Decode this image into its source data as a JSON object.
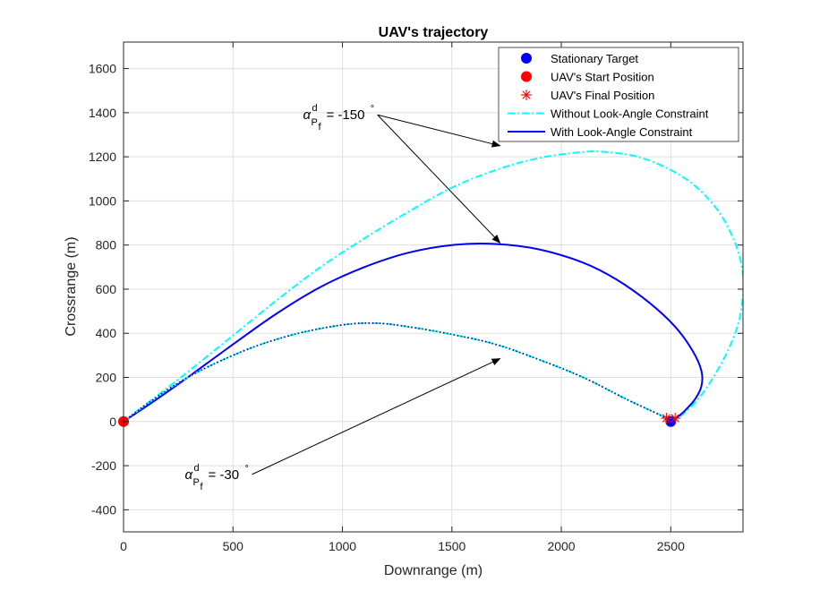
{
  "chart_data": {
    "type": "line",
    "title": "UAV's trajectory",
    "xlabel": "Downrange (m)",
    "ylabel": "Crossrange (m)",
    "xlim": [
      0,
      2830
    ],
    "ylim": [
      -500,
      1720
    ],
    "grid": true,
    "legend_position": "top-right",
    "xticks": [
      0,
      500,
      1000,
      1500,
      2000,
      2500
    ],
    "yticks": [
      -400,
      -200,
      0,
      200,
      400,
      600,
      800,
      1000,
      1200,
      1400,
      1600
    ],
    "legend": [
      {
        "label": "Stationary Target",
        "marker": "circle",
        "color": "#0000ff"
      },
      {
        "label": "UAV's Start Position",
        "marker": "circle",
        "color": "#ff0000"
      },
      {
        "label": "UAV's Final Position",
        "marker": "asterisk",
        "color": "#ff0000"
      },
      {
        "label": "Without Look-Angle Constraint",
        "line": "dashdot",
        "color": "#00ffff"
      },
      {
        "label": "With Look-Angle Constraint",
        "line": "solid",
        "color": "#0000ff"
      }
    ],
    "markers": {
      "target": {
        "x": 2500,
        "y": 0
      },
      "start": {
        "x": 0,
        "y": 0
      },
      "final": [
        {
          "x": 2480,
          "y": 15
        },
        {
          "x": 2520,
          "y": 15
        }
      ]
    },
    "series": [
      {
        "name": "Without Look-Angle Constraint",
        "style": "dashdot",
        "color": "#00ffff",
        "x": [
          0,
          150,
          300,
          500,
          700,
          900,
          1100,
          1300,
          1500,
          1700,
          1900,
          2100,
          2200,
          2350,
          2500,
          2620,
          2720,
          2790,
          2825,
          2830,
          2810,
          2760,
          2700,
          2640,
          2580,
          2530,
          2500
        ],
        "y": [
          0,
          115,
          230,
          390,
          550,
          700,
          830,
          950,
          1060,
          1140,
          1195,
          1222,
          1222,
          1200,
          1140,
          1060,
          950,
          820,
          700,
          580,
          450,
          320,
          210,
          120,
          55,
          15,
          0
        ]
      },
      {
        "name": "With Look-Angle Constraint",
        "style": "solid",
        "color": "#0000ff",
        "x": [
          0,
          150,
          300,
          500,
          700,
          900,
          1100,
          1300,
          1500,
          1700,
          1900,
          2100,
          2250,
          2400,
          2520,
          2600,
          2640,
          2640,
          2610,
          2560,
          2520,
          2500
        ],
        "y": [
          0,
          100,
          205,
          350,
          490,
          610,
          700,
          765,
          800,
          805,
          780,
          720,
          645,
          540,
          430,
          320,
          230,
          160,
          100,
          45,
          12,
          0
        ]
      },
      {
        "name": "",
        "style": "dashdot",
        "color": "#00ffff",
        "x": [
          0,
          100,
          250,
          400,
          600,
          800,
          1000,
          1150,
          1300,
          1500,
          1700,
          1900,
          2100,
          2300,
          2450,
          2500
        ],
        "y": [
          0,
          75,
          175,
          255,
          340,
          400,
          438,
          446,
          430,
          395,
          350,
          280,
          200,
          100,
          30,
          0
        ]
      },
      {
        "name": "",
        "style": "dotted",
        "color": "#000080",
        "x": [
          0,
          100,
          250,
          400,
          600,
          800,
          1000,
          1150,
          1300,
          1500,
          1700,
          1900,
          2100,
          2300,
          2450,
          2500
        ],
        "y": [
          0,
          75,
          175,
          255,
          340,
          400,
          438,
          446,
          430,
          395,
          350,
          280,
          200,
          100,
          30,
          0
        ]
      }
    ],
    "annotations": [
      {
        "alpha": "α",
        "sup": "d",
        "sub_p": "P",
        "sub_f": "f",
        "value": "= -150",
        "degree": "°",
        "text_at": {
          "x": 820,
          "y": 1370
        },
        "arrows_to": [
          {
            "x": 1720,
            "y": 1250
          },
          {
            "x": 1720,
            "y": 810
          }
        ]
      },
      {
        "alpha": "α",
        "sup": "d",
        "sub_p": "P",
        "sub_f": "f",
        "value": "= -30",
        "degree": "°",
        "text_at": {
          "x": 280,
          "y": -260
        },
        "arrows_to": [
          {
            "x": 1720,
            "y": 285
          }
        ]
      }
    ]
  }
}
